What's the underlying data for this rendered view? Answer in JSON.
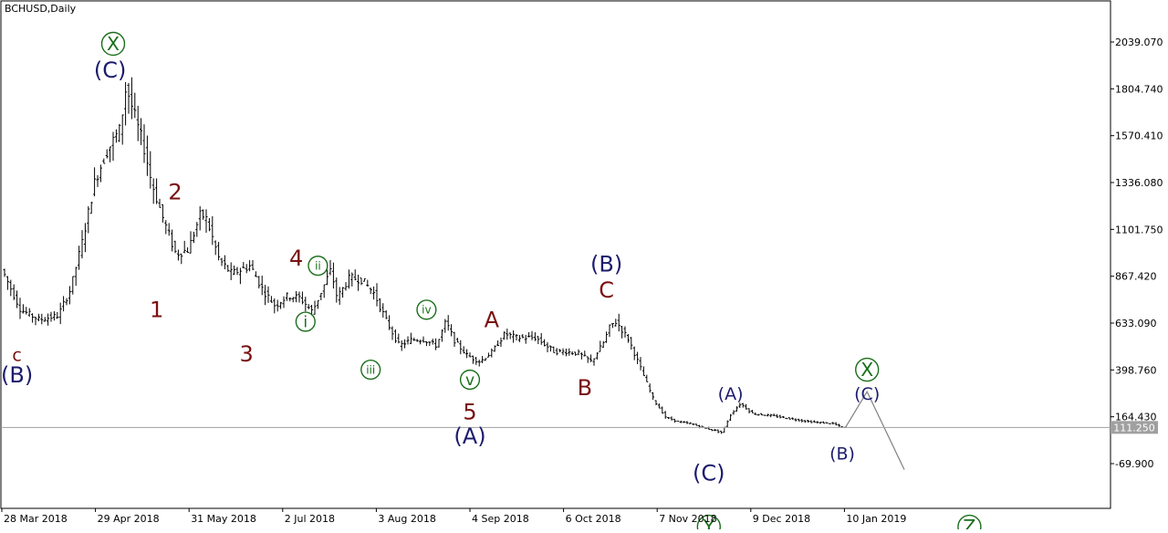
{
  "chart_data": {
    "type": "ohlc",
    "title": "BCHUSD,Daily",
    "ylim": [
      -151.0,
      2142.0
    ],
    "y_ticks": [
      2039.07,
      1804.74,
      1570.41,
      1336.08,
      1101.75,
      867.42,
      633.09,
      398.76,
      164.43,
      -69.9
    ],
    "y_tick_labels": [
      "2039.070",
      "1804.740",
      "1570.410",
      "1336.080",
      "1101.750",
      "867.420",
      "633.090",
      "398.760",
      "164.430",
      "-69.900"
    ],
    "x_tick_labels": [
      "28 Mar 2018",
      "29 Apr 2018",
      "31 May 2018",
      "2 Jul 2018",
      "3 Aug 2018",
      "4 Sep 2018",
      "6 Oct 2018",
      "7 Nov 2018",
      "9 Dec 2018",
      "10 Jan 2019"
    ],
    "current_price": 111.25,
    "current_price_label": "111.250",
    "bar_color": "#000000",
    "price_line_color": "#a0a0a0",
    "forecast_color": "#808080",
    "price_path": [
      [
        0,
        900
      ],
      [
        6,
        700
      ],
      [
        12,
        650
      ],
      [
        18,
        670
      ],
      [
        22,
        800
      ],
      [
        26,
        1050
      ],
      [
        30,
        1350
      ],
      [
        34,
        1500
      ],
      [
        38,
        1600
      ],
      [
        40,
        1820
      ],
      [
        43,
        1650
      ],
      [
        46,
        1500
      ],
      [
        48,
        1350
      ],
      [
        52,
        1150
      ],
      [
        56,
        980
      ],
      [
        60,
        1000
      ],
      [
        64,
        1180
      ],
      [
        66,
        1150
      ],
      [
        70,
        950
      ],
      [
        74,
        880
      ],
      [
        80,
        920
      ],
      [
        84,
        800
      ],
      [
        88,
        720
      ],
      [
        92,
        770
      ],
      [
        96,
        760
      ],
      [
        100,
        690
      ],
      [
        104,
        830
      ],
      [
        106,
        900
      ],
      [
        108,
        760
      ],
      [
        112,
        860
      ],
      [
        116,
        850
      ],
      [
        120,
        780
      ],
      [
        124,
        640
      ],
      [
        128,
        520
      ],
      [
        132,
        550
      ],
      [
        136,
        550
      ],
      [
        140,
        520
      ],
      [
        143,
        640
      ],
      [
        146,
        540
      ],
      [
        150,
        470
      ],
      [
        154,
        440
      ],
      [
        158,
        490
      ],
      [
        162,
        580
      ],
      [
        166,
        560
      ],
      [
        172,
        560
      ],
      [
        178,
        490
      ],
      [
        182,
        490
      ],
      [
        186,
        480
      ],
      [
        190,
        440
      ],
      [
        194,
        540
      ],
      [
        196,
        620
      ],
      [
        198,
        640
      ],
      [
        202,
        550
      ],
      [
        206,
        400
      ],
      [
        210,
        250
      ],
      [
        214,
        160
      ],
      [
        218,
        140
      ],
      [
        222,
        130
      ],
      [
        226,
        110
      ],
      [
        230,
        95
      ],
      [
        232,
        85
      ],
      [
        235,
        180
      ],
      [
        238,
        230
      ],
      [
        242,
        180
      ],
      [
        248,
        170
      ],
      [
        254,
        155
      ],
      [
        260,
        140
      ],
      [
        268,
        130
      ],
      [
        271,
        110
      ]
    ],
    "forecast_path": [
      [
        271,
        110
      ],
      [
        278,
        290
      ],
      [
        290,
        -100
      ]
    ],
    "forecast_x_end": 290,
    "annotations": [
      {
        "text": "X",
        "x": 35,
        "y": 2030,
        "color": "#1a6e1a",
        "circle": true,
        "size": 24
      },
      {
        "text": "(C)",
        "x": 34,
        "y": 1900,
        "color": "#1c1c6e",
        "circle": false,
        "size": 24
      },
      {
        "text": "c",
        "x": 4,
        "y": 475,
        "color": "#7a1010",
        "circle": false,
        "size": 19
      },
      {
        "text": "(B)",
        "x": 4,
        "y": 375,
        "color": "#1c1c6e",
        "circle": false,
        "size": 24
      },
      {
        "text": "2",
        "x": 55,
        "y": 1290,
        "color": "#7a1010",
        "circle": false,
        "size": 24
      },
      {
        "text": "1",
        "x": 49,
        "y": 700,
        "color": "#7a1010",
        "circle": false,
        "size": 24
      },
      {
        "text": "3",
        "x": 78,
        "y": 480,
        "color": "#7a1010",
        "circle": false,
        "size": 24
      },
      {
        "text": "4",
        "x": 94,
        "y": 960,
        "color": "#7a1010",
        "circle": false,
        "size": 24
      },
      {
        "text": "ii",
        "x": 101,
        "y": 920,
        "color": "#1a6e1a",
        "circle": true,
        "size": 20
      },
      {
        "text": "i",
        "x": 97,
        "y": 640,
        "color": "#1a6e1a",
        "circle": true,
        "size": 20
      },
      {
        "text": "iii",
        "x": 118,
        "y": 400,
        "color": "#1a6e1a",
        "circle": true,
        "size": 20
      },
      {
        "text": "iv",
        "x": 136,
        "y": 700,
        "color": "#1a6e1a",
        "circle": true,
        "size": 20
      },
      {
        "text": "A",
        "x": 157,
        "y": 650,
        "color": "#7a1010",
        "circle": false,
        "size": 24
      },
      {
        "text": "v",
        "x": 150,
        "y": 350,
        "color": "#1a6e1a",
        "circle": true,
        "size": 20
      },
      {
        "text": "5",
        "x": 150,
        "y": 190,
        "color": "#7a1010",
        "circle": false,
        "size": 24
      },
      {
        "text": "(A)",
        "x": 150,
        "y": 70,
        "color": "#1c1c6e",
        "circle": false,
        "size": 24
      },
      {
        "text": "(B)",
        "x": 194,
        "y": 930,
        "color": "#1c1c6e",
        "circle": false,
        "size": 24
      },
      {
        "text": "C",
        "x": 194,
        "y": 800,
        "color": "#7a1010",
        "circle": false,
        "size": 24
      },
      {
        "text": "B",
        "x": 187,
        "y": 310,
        "color": "#7a1010",
        "circle": false,
        "size": 24
      },
      {
        "text": "(A)",
        "x": 234,
        "y": 280,
        "color": "#1c1c6e",
        "circle": false,
        "size": 19
      },
      {
        "text": "(C)",
        "x": 227,
        "y": -115,
        "color": "#1c1c6e",
        "circle": false,
        "size": 24
      },
      {
        "text": "Y",
        "x": 227,
        "y": -385,
        "color": "#1a6e1a",
        "circle": true,
        "size": 24
      },
      {
        "text": "X",
        "x": 278,
        "y": 400,
        "color": "#1a6e1a",
        "circle": true,
        "size": 24
      },
      {
        "text": "(C)",
        "x": 278,
        "y": 280,
        "color": "#1c1c6e",
        "circle": false,
        "size": 19
      },
      {
        "text": "(B)",
        "x": 270,
        "y": -20,
        "color": "#1c1c6e",
        "circle": false,
        "size": 19
      },
      {
        "text": "Z",
        "x": 311,
        "y": -385,
        "color": "#1a6e1a",
        "circle": true,
        "size": 24
      }
    ]
  }
}
